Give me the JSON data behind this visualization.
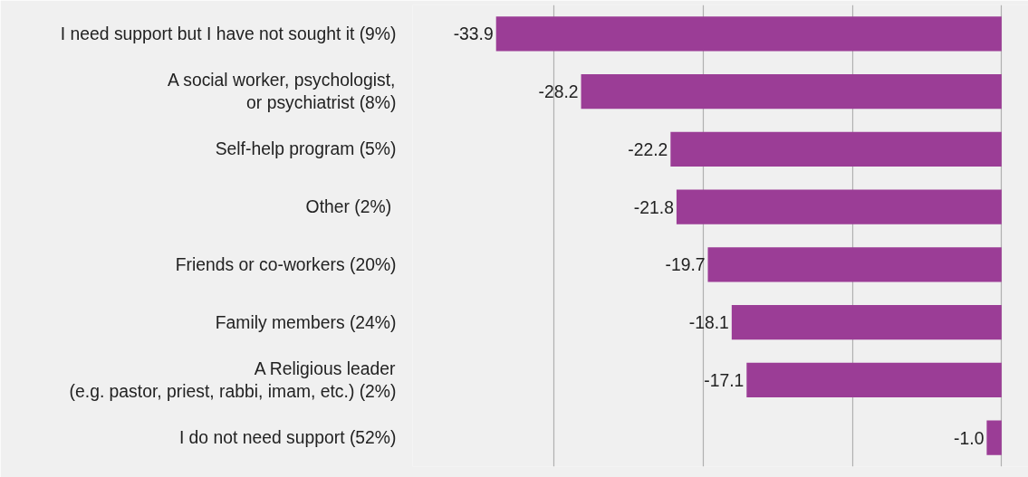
{
  "chart_data": {
    "type": "bar",
    "orientation": "horizontal",
    "categories": [
      "I need support but I have not sought it (9%)",
      "A social worker, psychologist,\nor psychiatrist (8%)",
      "Self-help program (5%)",
      "Other  (2%)",
      "Friends or co-workers (20%)",
      "Family members (24%)",
      "A Religious leader\n(e.g. pastor, priest, rabbi, imam, etc.) (2%)",
      "I do not need support (52%)"
    ],
    "values": [
      -33.9,
      -28.2,
      -22.2,
      -21.8,
      -19.7,
      -18.1,
      -17.1,
      -1.0
    ],
    "color": "#9b3d96",
    "xlim": [
      -39.5,
      1.8
    ],
    "xticks": [
      {
        "value": -30,
        "label": null
      },
      {
        "value": -20,
        "label": null
      },
      {
        "value": -10,
        "label": null
      },
      {
        "value": 0,
        "label": null
      }
    ],
    "value_labels": [
      "-33.9",
      "-28.2",
      "-22.2",
      "-21.8",
      "-19.7",
      "-18.1",
      "-17.1",
      "-1.0"
    ],
    "grid": "x",
    "tick_labels": "y"
  }
}
